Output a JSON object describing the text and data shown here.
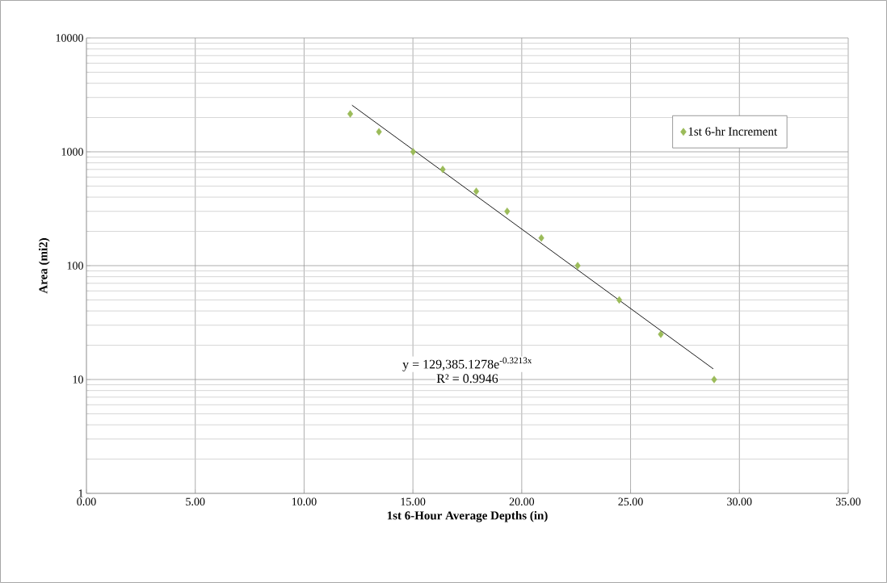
{
  "chart_data": {
    "type": "scatter",
    "xlabel": "1st 6-Hour Average Depths (in)",
    "ylabel": "Area (mi2)",
    "series": [
      {
        "name": "1st 6-hr Increment",
        "marker": "diamond",
        "color": "#9bbb59",
        "x": [
          12.12,
          13.44,
          15.01,
          16.37,
          17.91,
          19.33,
          20.9,
          22.57,
          24.48,
          26.39,
          28.84
        ],
        "values": [
          2150,
          1500,
          1000,
          700,
          450,
          300,
          175,
          100,
          50,
          25,
          10
        ]
      },
      {
        "type": "line",
        "marker": "none",
        "color": "#000000",
        "x": [
          12.2,
          28.8
        ],
        "values": [
          2567,
          12.4
        ]
      }
    ],
    "annotations": [
      "y = 129,385.1278e$^{-0.3213x}$",
      "R² = 0.9946"
    ],
    "xlim": [
      0,
      35
    ],
    "ylim": [
      1,
      10000
    ],
    "log": "y",
    "xticks": [
      {
        "value": 0,
        "label": "0.00"
      },
      {
        "value": 5,
        "label": "5.00"
      },
      {
        "value": 10,
        "label": "10.00"
      },
      {
        "value": 15,
        "label": "15.00"
      },
      {
        "value": 20,
        "label": "20.00"
      },
      {
        "value": 25,
        "label": "25.00"
      },
      {
        "value": 30,
        "label": "30.00"
      },
      {
        "value": 35,
        "label": "35.00"
      }
    ],
    "yticks": [
      1,
      10,
      100,
      1000,
      10000
    ],
    "grid": true,
    "legend": "top right"
  }
}
